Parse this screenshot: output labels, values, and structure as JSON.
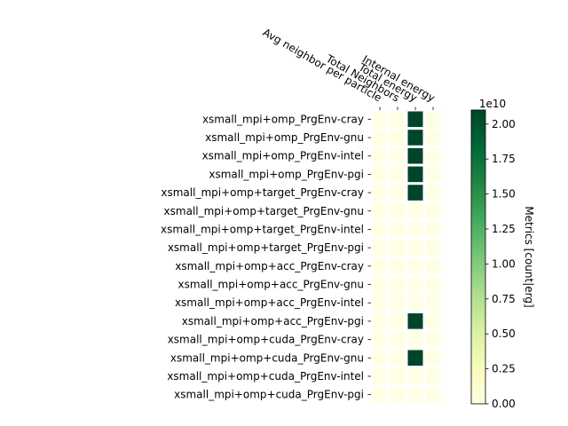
{
  "chart_data": {
    "type": "heatmap",
    "title": "",
    "x_tick_labels": [
      "Avg neighbor per particle",
      "Total Neighbors",
      "Total energy",
      "Internal energy"
    ],
    "y_tick_labels": [
      "xsmall_mpi+omp_PrgEnv-cray",
      "xsmall_mpi+omp_PrgEnv-gnu",
      "xsmall_mpi+omp_PrgEnv-intel",
      "xsmall_mpi+omp_PrgEnv-pgi",
      "xsmall_mpi+omp+target_PrgEnv-cray",
      "xsmall_mpi+omp+target_PrgEnv-gnu",
      "xsmall_mpi+omp+target_PrgEnv-intel",
      "xsmall_mpi+omp+target_PrgEnv-pgi",
      "xsmall_mpi+omp+acc_PrgEnv-cray",
      "xsmall_mpi+omp+acc_PrgEnv-gnu",
      "xsmall_mpi+omp+acc_PrgEnv-intel",
      "xsmall_mpi+omp+acc_PrgEnv-pgi",
      "xsmall_mpi+omp+cuda_PrgEnv-cray",
      "xsmall_mpi+omp+cuda_PrgEnv-gnu",
      "xsmall_mpi+omp+cuda_PrgEnv-intel",
      "xsmall_mpi+omp+cuda_PrgEnv-pgi"
    ],
    "values": [
      [
        0,
        0,
        21000000000.0,
        0
      ],
      [
        0,
        0,
        21000000000.0,
        0
      ],
      [
        0,
        0,
        21000000000.0,
        0
      ],
      [
        0,
        0,
        21000000000.0,
        0
      ],
      [
        0,
        0,
        21000000000.0,
        0
      ],
      [
        0,
        0,
        0,
        0
      ],
      [
        0,
        0,
        0,
        0
      ],
      [
        0,
        0,
        0,
        0
      ],
      [
        0,
        0,
        0,
        0
      ],
      [
        0,
        0,
        0,
        0
      ],
      [
        0,
        0,
        0,
        0
      ],
      [
        0,
        0,
        21000000000.0,
        0
      ],
      [
        0,
        0,
        0,
        0
      ],
      [
        0,
        0,
        21000000000.0,
        0
      ],
      [
        0,
        0,
        0,
        0
      ],
      [
        0,
        0,
        0,
        0
      ]
    ],
    "colorbar": {
      "label": "Metrics [count|erg]",
      "offset_label": "1e10",
      "range": [
        0,
        21000000000.0
      ],
      "tick_values": [
        0,
        2500000000.0,
        5000000000.0,
        7500000000.0,
        10000000000.0,
        12500000000.0,
        15000000000.0,
        17500000000.0,
        20000000000.0
      ],
      "tick_labels": [
        "0.00",
        "0.25",
        "0.50",
        "0.75",
        "1.00",
        "1.25",
        "1.50",
        "1.75",
        "2.00"
      ],
      "colormap": "YlGn",
      "colormap_stops": [
        "#ffffe5",
        "#f7fcb9",
        "#d9f0a3",
        "#addd8e",
        "#78c679",
        "#41ab5d",
        "#238443",
        "#006837",
        "#004529"
      ]
    },
    "grid": false,
    "cell_border_color": "#ffffff"
  }
}
